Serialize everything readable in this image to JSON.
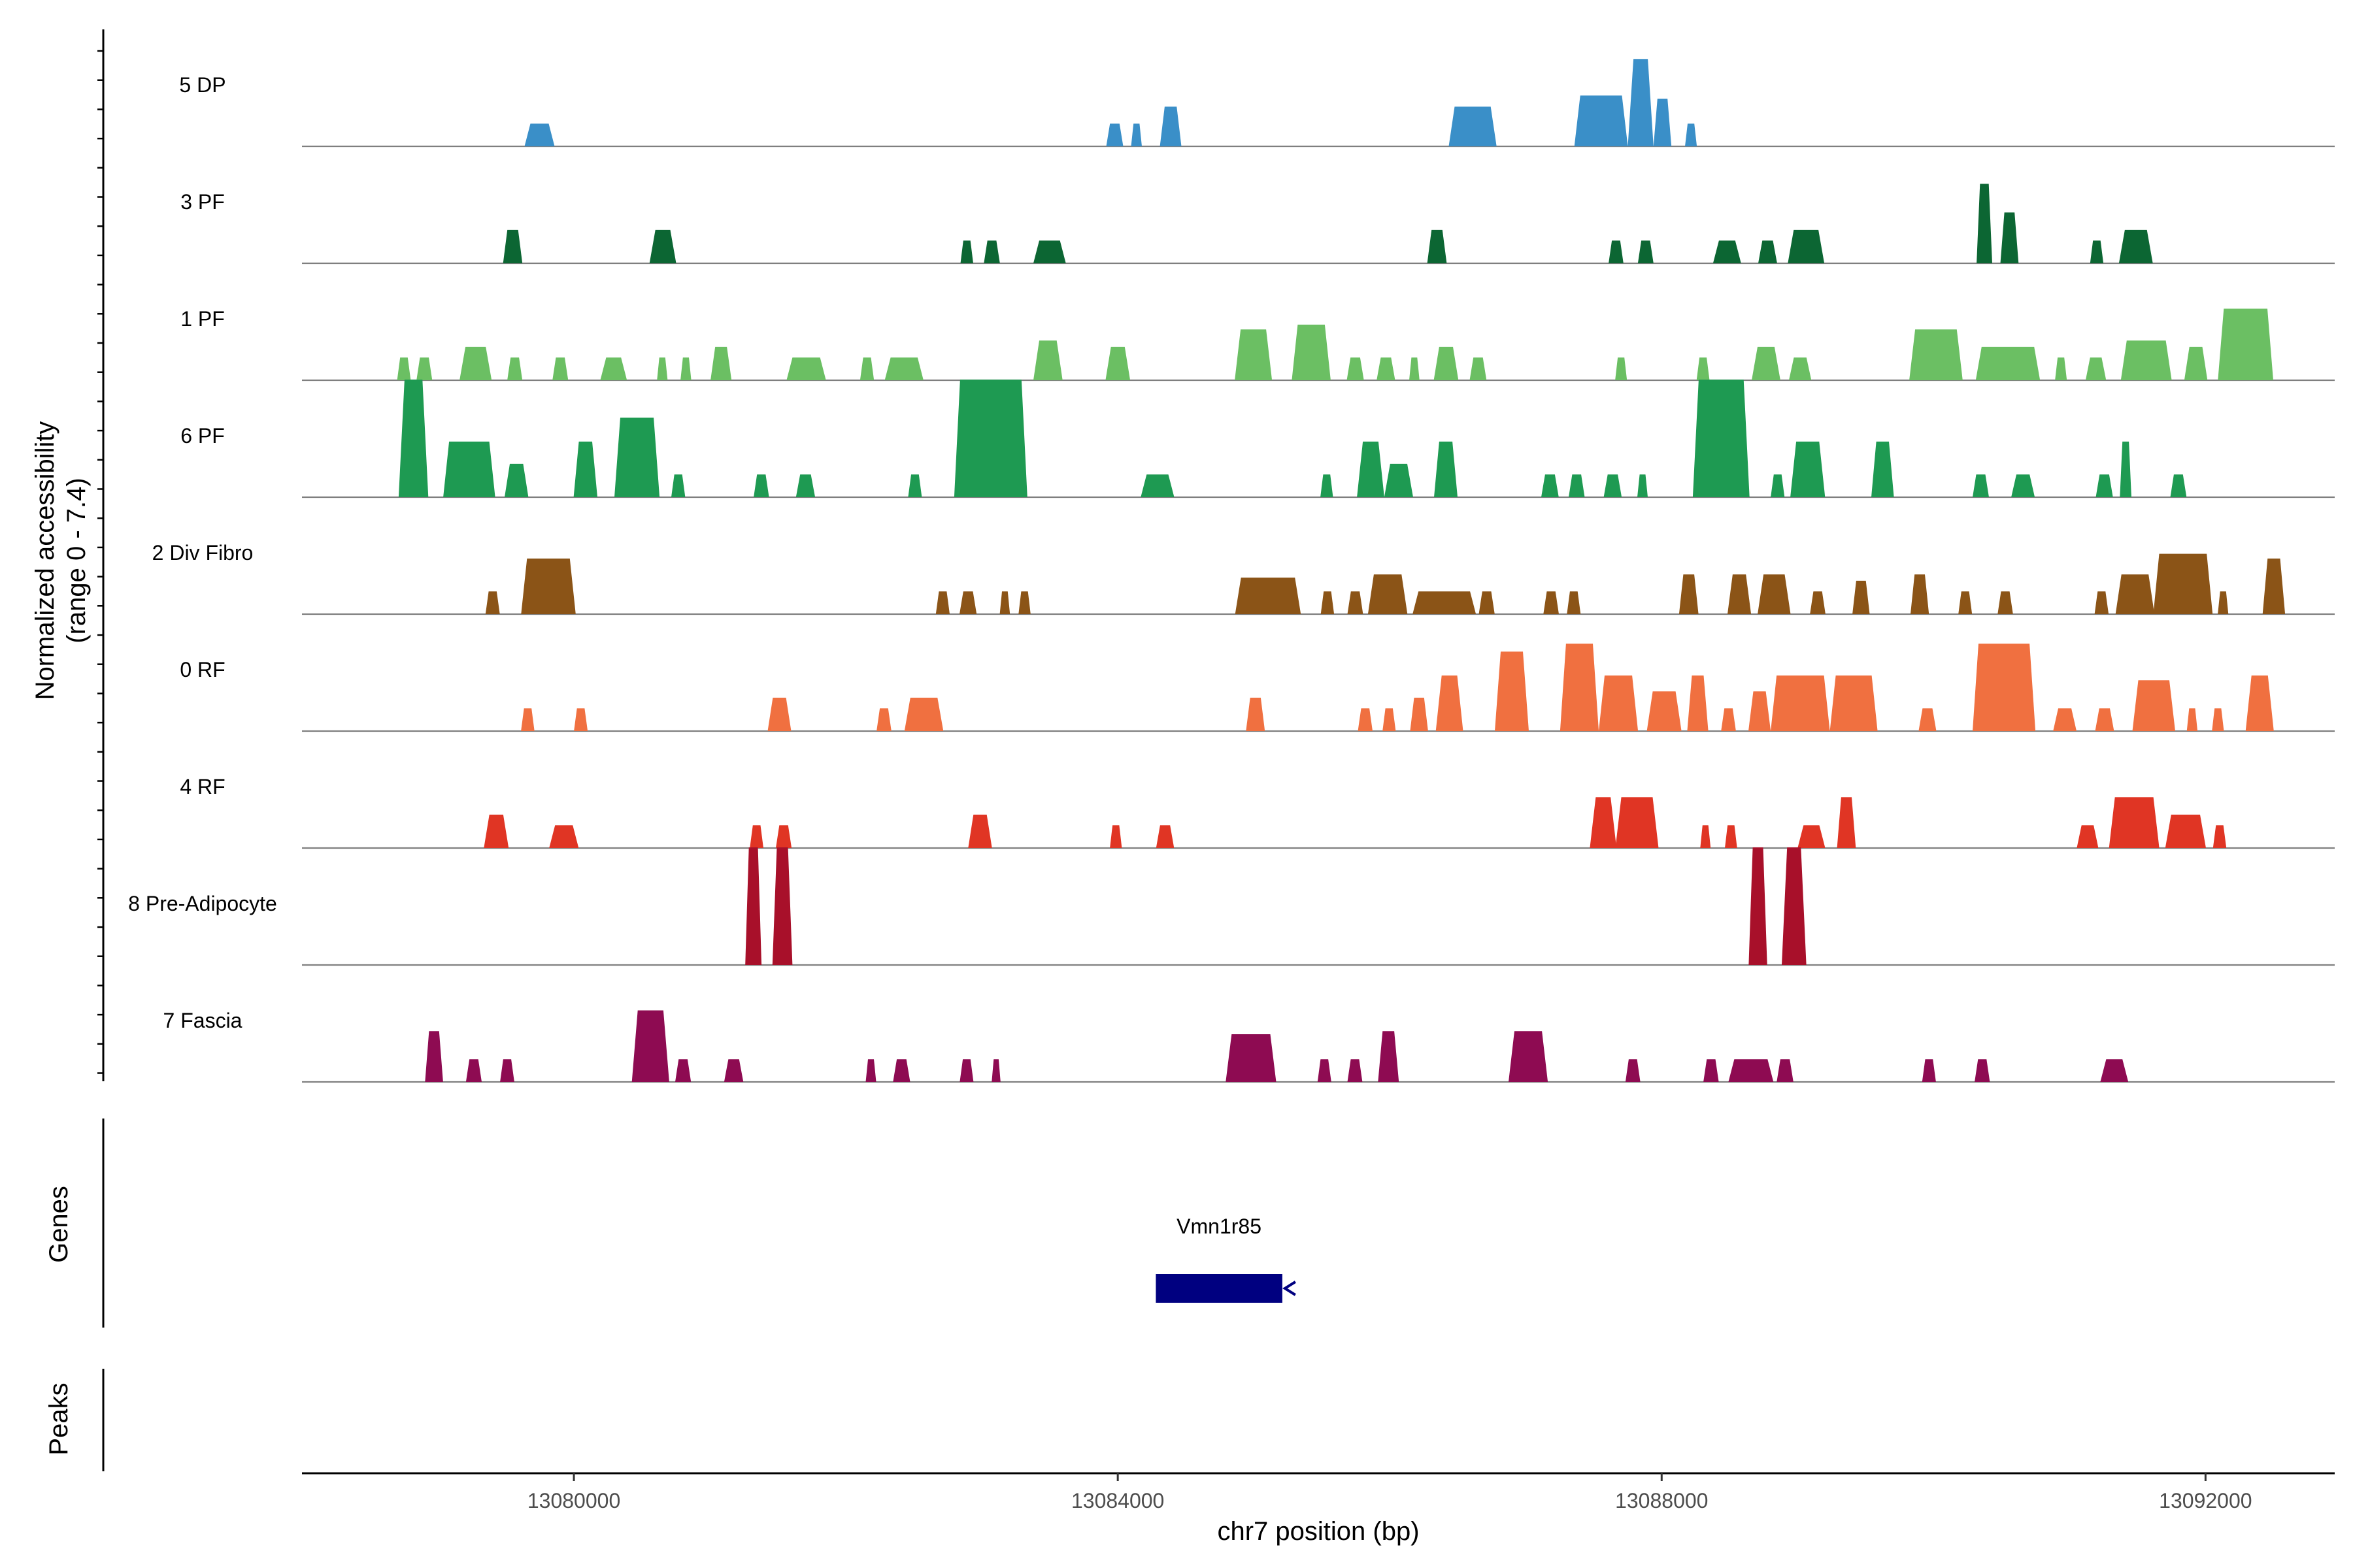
{
  "chart_data": {
    "type": "area",
    "title": "",
    "chromosome": "chr7",
    "xlabel": "chr7 position (bp)",
    "ylabel": "Normalized accessibility",
    "ylabel_range": "(range 0 - 7.4)",
    "y_range": [
      0,
      7.4
    ],
    "x_range": [
      13078000,
      13092950
    ],
    "x_ticks": [
      13080000,
      13084000,
      13088000,
      13092000
    ],
    "x_tick_labels": [
      "13080000",
      "13084000",
      "13088000",
      "13092000"
    ],
    "tracks": [
      {
        "name": "5 DP",
        "color": "#3a8fc8",
        "peaks": [
          [
            13079637,
            13079858,
            1.43
          ],
          [
            13083915,
            13084040,
            1.43
          ],
          [
            13084098,
            13084177,
            1.43
          ],
          [
            13084310,
            13084468,
            2.5
          ],
          [
            13086434,
            13086786,
            2.5
          ],
          [
            13087358,
            13087751,
            3.2
          ],
          [
            13087751,
            13087940,
            5.5
          ],
          [
            13087940,
            13088072,
            3.0
          ],
          [
            13088172,
            13088259,
            1.43
          ]
        ]
      },
      {
        "name": "3 PF",
        "color": "#0c6633",
        "peaks": [
          [
            13079479,
            13079621,
            2.1
          ],
          [
            13080556,
            13080752,
            2.1
          ],
          [
            13082843,
            13082937,
            1.43
          ],
          [
            13083015,
            13083133,
            1.43
          ],
          [
            13083379,
            13083618,
            1.43
          ],
          [
            13086276,
            13086419,
            2.1
          ],
          [
            13087610,
            13087719,
            1.43
          ],
          [
            13087825,
            13087940,
            1.43
          ],
          [
            13088378,
            13088584,
            1.43
          ],
          [
            13088710,
            13088849,
            1.43
          ],
          [
            13088928,
            13089196,
            2.1
          ],
          [
            13090316,
            13090431,
            5.0
          ],
          [
            13090491,
            13090625,
            3.2
          ],
          [
            13091151,
            13091249,
            1.43
          ],
          [
            13091363,
            13091612,
            2.1
          ]
        ]
      },
      {
        "name": "1 PF",
        "color": "#6bbf63",
        "peaks": [
          [
            13078700,
            13078800,
            1.43
          ],
          [
            13078842,
            13078958,
            1.43
          ],
          [
            13079159,
            13079395,
            2.1
          ],
          [
            13079510,
            13079621,
            1.43
          ],
          [
            13079842,
            13079958,
            1.43
          ],
          [
            13080194,
            13080390,
            1.43
          ],
          [
            13080611,
            13080689,
            1.43
          ],
          [
            13080784,
            13080863,
            1.43
          ],
          [
            13081005,
            13081159,
            2.1
          ],
          [
            13081564,
            13081854,
            1.43
          ],
          [
            13082105,
            13082207,
            1.43
          ],
          [
            13082286,
            13082571,
            1.43
          ],
          [
            13083379,
            13083594,
            2.5
          ],
          [
            13083910,
            13084091,
            2.1
          ],
          [
            13084860,
            13085134,
            3.2
          ],
          [
            13085280,
            13085566,
            3.5
          ],
          [
            13085684,
            13085810,
            1.43
          ],
          [
            13085904,
            13086040,
            1.43
          ],
          [
            13086143,
            13086219,
            1.43
          ],
          [
            13086324,
            13086505,
            2.1
          ],
          [
            13086588,
            13086712,
            1.43
          ],
          [
            13087658,
            13087745,
            1.43
          ],
          [
            13088257,
            13088352,
            1.43
          ],
          [
            13088662,
            13088873,
            2.1
          ],
          [
            13088936,
            13089101,
            1.43
          ],
          [
            13089821,
            13090214,
            3.2
          ],
          [
            13090310,
            13090783,
            2.1
          ],
          [
            13090893,
            13090980,
            1.43
          ],
          [
            13091118,
            13091269,
            1.43
          ],
          [
            13091377,
            13091751,
            2.5
          ],
          [
            13091844,
            13092014,
            2.1
          ],
          [
            13092091,
            13092498,
            4.5
          ]
        ]
      },
      {
        "name": "6 PF",
        "color": "#1e9a52",
        "peaks": [
          [
            13078711,
            13078929,
            7.4
          ],
          [
            13079039,
            13079421,
            3.5
          ],
          [
            13079490,
            13079665,
            2.1
          ],
          [
            13079998,
            13080173,
            3.5
          ],
          [
            13080298,
            13080630,
            5.0
          ],
          [
            13080716,
            13080819,
            1.43
          ],
          [
            13081322,
            13081435,
            1.43
          ],
          [
            13081633,
            13081774,
            1.43
          ],
          [
            13082458,
            13082559,
            1.43
          ],
          [
            13082797,
            13083335,
            7.4
          ],
          [
            13084169,
            13084415,
            1.43
          ],
          [
            13085490,
            13085583,
            1.43
          ],
          [
            13085759,
            13085960,
            3.5
          ],
          [
            13085960,
            13086172,
            2.1
          ],
          [
            13086326,
            13086499,
            3.5
          ],
          [
            13087114,
            13087243,
            1.43
          ],
          [
            13087316,
            13087434,
            1.43
          ],
          [
            13087574,
            13087706,
            1.43
          ],
          [
            13087821,
            13087898,
            1.43
          ],
          [
            13088229,
            13088646,
            7.4
          ],
          [
            13088802,
            13088904,
            1.43
          ],
          [
            13088946,
            13089202,
            3.5
          ],
          [
            13089542,
            13089708,
            3.5
          ],
          [
            13090287,
            13090407,
            1.43
          ],
          [
            13090571,
            13090744,
            1.43
          ],
          [
            13091193,
            13091319,
            1.43
          ],
          [
            13091370,
            13091455,
            3.5
          ],
          [
            13091741,
            13091860,
            1.43
          ]
        ]
      },
      {
        "name": "2 Div Fibro",
        "color": "#8b5417",
        "peaks": [
          [
            13079350,
            13079455,
            1.43
          ],
          [
            13079612,
            13080013,
            3.5
          ],
          [
            13082662,
            13082764,
            1.43
          ],
          [
            13082836,
            13082962,
            1.43
          ],
          [
            13083132,
            13083207,
            1.43
          ],
          [
            13083270,
            13083359,
            1.43
          ],
          [
            13084863,
            13085346,
            2.3
          ],
          [
            13085493,
            13085591,
            1.43
          ],
          [
            13085689,
            13085804,
            1.43
          ],
          [
            13085840,
            13086130,
            2.5
          ],
          [
            13086168,
            13086634,
            1.43
          ],
          [
            13086655,
            13086772,
            1.43
          ],
          [
            13087130,
            13087244,
            1.43
          ],
          [
            13087303,
            13087404,
            1.43
          ],
          [
            13088128,
            13088271,
            2.5
          ],
          [
            13088484,
            13088658,
            2.5
          ],
          [
            13088706,
            13088948,
            2.5
          ],
          [
            13089091,
            13089205,
            1.43
          ],
          [
            13089403,
            13089530,
            2.1
          ],
          [
            13089830,
            13089966,
            2.5
          ],
          [
            13090182,
            13090283,
            1.43
          ],
          [
            13090471,
            13090584,
            1.43
          ],
          [
            13091184,
            13091287,
            1.43
          ],
          [
            13091338,
            13091624,
            2.5
          ],
          [
            13091616,
            13092052,
            3.8
          ],
          [
            13092090,
            13092168,
            1.43
          ],
          [
            13092420,
            13092585,
            3.5
          ]
        ]
      },
      {
        "name": "0 RF",
        "color": "#f07040",
        "peaks": [
          [
            13079611,
            13079710,
            1.43
          ],
          [
            13080000,
            13080101,
            1.43
          ],
          [
            13081425,
            13081598,
            2.1
          ],
          [
            13082226,
            13082335,
            1.43
          ],
          [
            13082431,
            13082717,
            2.1
          ],
          [
            13084943,
            13085082,
            2.1
          ],
          [
            13085766,
            13085874,
            1.43
          ],
          [
            13085947,
            13086044,
            1.43
          ],
          [
            13086150,
            13086282,
            2.1
          ],
          [
            13086339,
            13086540,
            3.5
          ],
          [
            13086773,
            13087023,
            5.0
          ],
          [
            13087253,
            13087537,
            5.5
          ],
          [
            13087537,
            13087826,
            3.5
          ],
          [
            13087891,
            13088146,
            2.5
          ],
          [
            13088188,
            13088343,
            3.5
          ],
          [
            13088437,
            13088546,
            1.43
          ],
          [
            13088638,
            13088802,
            2.5
          ],
          [
            13088802,
            13089237,
            3.5
          ],
          [
            13089237,
            13089588,
            3.5
          ],
          [
            13089890,
            13090020,
            1.43
          ],
          [
            13090287,
            13090749,
            5.5
          ],
          [
            13090879,
            13091051,
            1.43
          ],
          [
            13091188,
            13091327,
            1.43
          ],
          [
            13091462,
            13091777,
            3.2
          ],
          [
            13091862,
            13091941,
            1.43
          ],
          [
            13092047,
            13092135,
            1.43
          ],
          [
            13092295,
            13092502,
            3.5
          ]
        ]
      },
      {
        "name": "4 RF",
        "color": "#e03524",
        "peaks": [
          [
            13079338,
            13079520,
            2.1
          ],
          [
            13079818,
            13080035,
            1.43
          ],
          [
            13081294,
            13081394,
            1.43
          ],
          [
            13081485,
            13081601,
            1.43
          ],
          [
            13082900,
            13083075,
            2.1
          ],
          [
            13083942,
            13084030,
            1.43
          ],
          [
            13084282,
            13084414,
            1.43
          ],
          [
            13087472,
            13087668,
            3.2
          ],
          [
            13087660,
            13087977,
            3.2
          ],
          [
            13088284,
            13088360,
            1.43
          ],
          [
            13088465,
            13088555,
            1.43
          ],
          [
            13089000,
            13089203,
            1.43
          ],
          [
            13089290,
            13089428,
            3.2
          ],
          [
            13091053,
            13091212,
            1.43
          ],
          [
            13091290,
            13091660,
            3.2
          ],
          [
            13091704,
            13092003,
            2.1
          ],
          [
            13092055,
            13092153,
            1.43
          ]
        ]
      },
      {
        "name": "8 Pre-Adipocyte",
        "color": "#a8102a",
        "peaks": [
          [
            13081260,
            13081380,
            7.4
          ],
          [
            13081460,
            13081607,
            7.4
          ],
          [
            13088640,
            13088776,
            7.4
          ],
          [
            13088883,
            13089064,
            7.4
          ]
        ]
      },
      {
        "name": "7 Fascia",
        "color": "#8e0b52",
        "peaks": [
          [
            13078905,
            13079038,
            3.2
          ],
          [
            13079206,
            13079322,
            1.43
          ],
          [
            13079457,
            13079562,
            1.43
          ],
          [
            13080426,
            13080701,
            4.5
          ],
          [
            13080745,
            13080861,
            1.43
          ],
          [
            13081105,
            13081246,
            1.43
          ],
          [
            13082146,
            13082223,
            1.43
          ],
          [
            13082347,
            13082473,
            1.43
          ],
          [
            13082838,
            13082939,
            1.43
          ],
          [
            13083073,
            13083138,
            1.43
          ],
          [
            13084794,
            13085165,
            3.0
          ],
          [
            13085469,
            13085570,
            1.43
          ],
          [
            13085689,
            13085799,
            1.43
          ],
          [
            13085914,
            13086067,
            3.2
          ],
          [
            13086874,
            13087163,
            3.2
          ],
          [
            13087734,
            13087843,
            1.43
          ],
          [
            13088307,
            13088420,
            1.43
          ],
          [
            13088491,
            13088822,
            1.43
          ],
          [
            13088846,
            13088969,
            1.43
          ],
          [
            13089916,
            13090017,
            1.43
          ],
          [
            13090302,
            13090414,
            1.43
          ],
          [
            13091226,
            13091432,
            1.43
          ]
        ]
      }
    ],
    "genes_panel_label": "Genes",
    "genes": [
      {
        "name": "Vmn1r85",
        "start": 13084280,
        "end": 13085210,
        "strand": "-"
      }
    ],
    "peaks_panel_label": "Peaks"
  }
}
